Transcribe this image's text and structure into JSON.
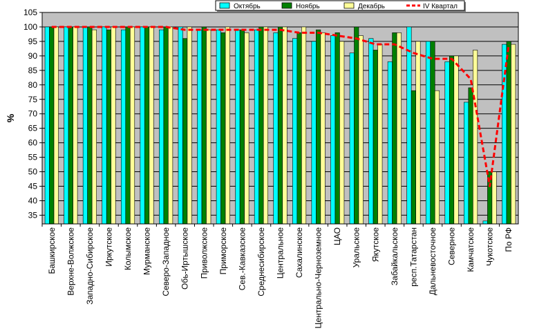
{
  "chart_data": {
    "type": "bar",
    "ylabel": "%",
    "xlabel": "",
    "ylim": [
      32,
      105
    ],
    "yticks": [
      35,
      40,
      45,
      50,
      55,
      60,
      65,
      70,
      75,
      80,
      85,
      90,
      95,
      100,
      105
    ],
    "grid": true,
    "legend_position": "top-right",
    "categories": [
      "Башкирское",
      "Верхне-Волжское",
      "Западно-Сибирское",
      "Иркутское",
      "Колымское",
      "Мурманское",
      "Северо-Западное",
      "Обь-Иртышское",
      "Приволжское",
      "Приморское",
      "Сев.-Кавказское",
      "Среднесибирское",
      "Центральное",
      "Сахалинское",
      "Центрально-Черноземное",
      "ЦАО",
      "Уральское",
      "Якутское",
      "Забайкальское",
      "респ.Татарстан",
      "Дальневосточное",
      "Северное",
      "Камчатское",
      "Чукотское",
      "По РФ"
    ],
    "series": [
      {
        "name": "Октябрь",
        "type": "bar",
        "color": "#00ffff",
        "values": [
          100,
          100,
          100,
          100,
          99,
          100,
          99,
          100,
          99,
          99,
          99,
          99,
          98,
          96,
          95,
          97,
          91,
          96,
          88,
          100,
          95,
          88,
          74,
          33,
          94
        ]
      },
      {
        "name": "Ноябрь",
        "type": "bar",
        "color": "#008000",
        "values": [
          100,
          100,
          100,
          99,
          100,
          100,
          100,
          96,
          100,
          98,
          99,
          100,
          100,
          98,
          99,
          98,
          100,
          92,
          98,
          78,
          95,
          90,
          79,
          50,
          95
        ]
      },
      {
        "name": "Декабрь",
        "type": "bar",
        "color": "#ffff99",
        "values": [
          100,
          100,
          99,
          100,
          100,
          100,
          100,
          100,
          99,
          100,
          98,
          100,
          100,
          100,
          98,
          95,
          97,
          94,
          98,
          95,
          78,
          90,
          92,
          50,
          94
        ]
      },
      {
        "name": "IV Квартал",
        "type": "line",
        "color": "#ff0000",
        "values": [
          100,
          100,
          100,
          100,
          100,
          100,
          100,
          99,
          99,
          99,
          99,
          99,
          99,
          98,
          98,
          97,
          96,
          94,
          94,
          91,
          89,
          89,
          82,
          45,
          94
        ]
      }
    ]
  }
}
